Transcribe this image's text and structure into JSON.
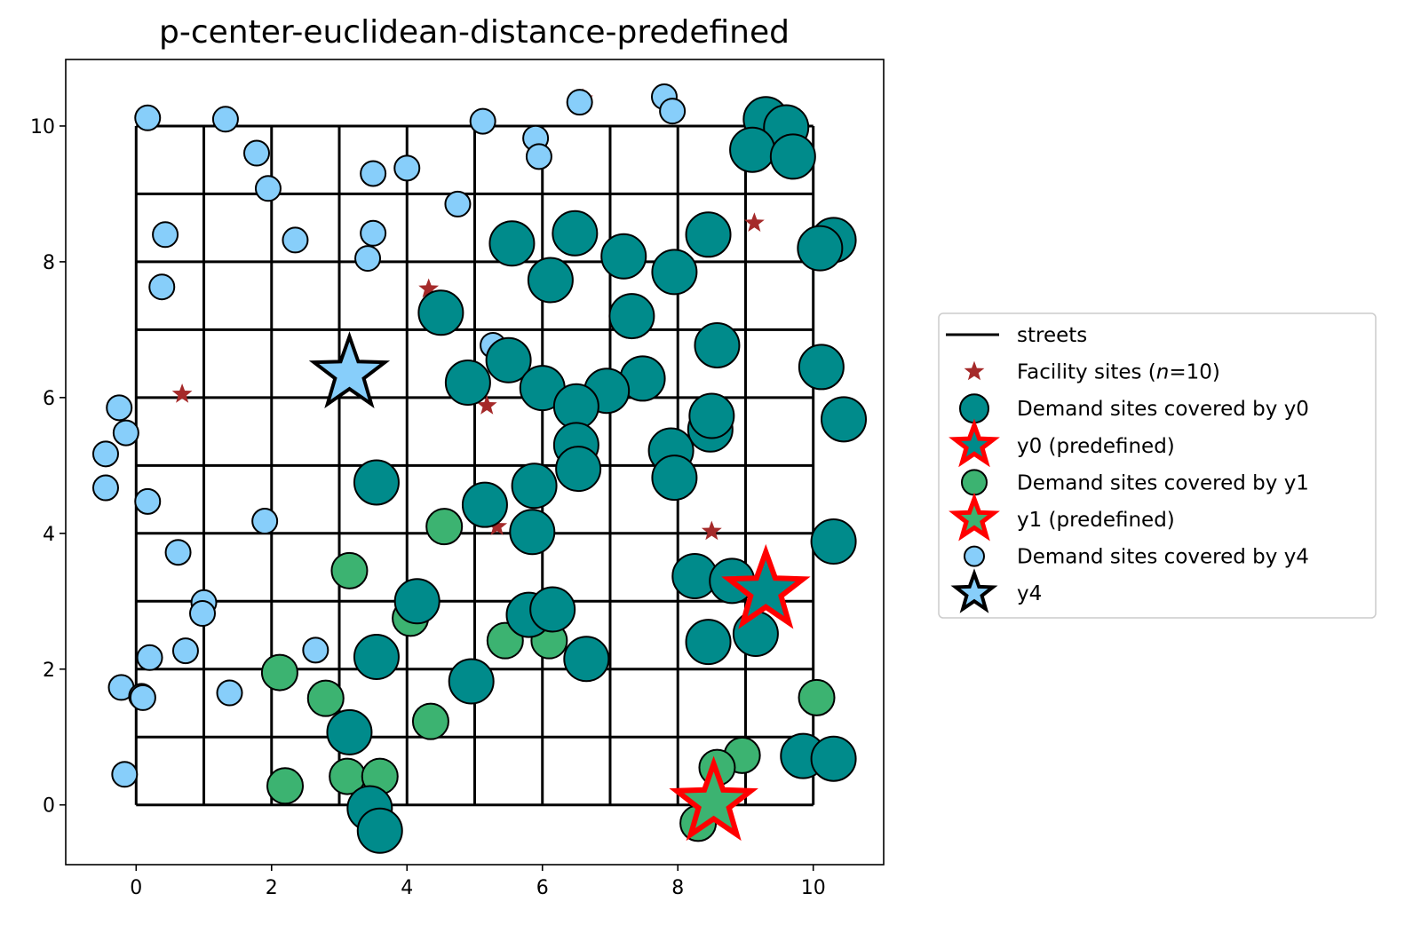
{
  "chart_data": {
    "type": "scatter",
    "title": "p-center-euclidean-distance-predefined",
    "xlabel": "",
    "ylabel": "",
    "xlim": [
      -1.04,
      11.04
    ],
    "ylim": [
      -0.88,
      10.98
    ],
    "xticks": [
      0,
      2,
      4,
      6,
      8,
      10
    ],
    "yticks": [
      0,
      2,
      4,
      6,
      8,
      10
    ],
    "grid": false,
    "legend_position": "right, outside plot",
    "colors": {
      "streets": "#000000",
      "facility": "#a52a2a",
      "y0": "#008b8b",
      "y1": "#3cb371",
      "y4": "#87cefa",
      "predefined_outline": "#ff0000"
    },
    "streets": {
      "xs": [
        0,
        1,
        2,
        3,
        4,
        5,
        6,
        7,
        8,
        9,
        10
      ],
      "ys": [
        0,
        1,
        2,
        3,
        4,
        5,
        6,
        7,
        8,
        9,
        10
      ],
      "extent": [
        0,
        10
      ]
    },
    "legend": [
      {
        "key": "streets",
        "label": "streets",
        "symbol": "line"
      },
      {
        "key": "facility",
        "label_pre": "Facility sites (",
        "label_italic": "n",
        "label_post": "=10)",
        "symbol": "small-star"
      },
      {
        "key": "y0_demand",
        "label": "Demand sites covered by y0",
        "symbol": "circle-y0"
      },
      {
        "key": "y0_site",
        "label": "y0 (predefined)",
        "symbol": "star-y0"
      },
      {
        "key": "y1_demand",
        "label": "Demand sites covered by y1",
        "symbol": "circle-y1"
      },
      {
        "key": "y1_site",
        "label": "y1 (predefined)",
        "symbol": "star-y1"
      },
      {
        "key": "y4_demand",
        "label": "Demand sites covered by y4",
        "symbol": "circle-y4"
      },
      {
        "key": "y4_site",
        "label": "y4",
        "symbol": "star-y4"
      }
    ],
    "facility_sites": [
      [
        6.6,
        10.4
      ],
      [
        9.13,
        8.57
      ],
      [
        4.32,
        7.6
      ],
      [
        0.68,
        6.05
      ],
      [
        5.18,
        5.88
      ],
      [
        5.33,
        4.1
      ],
      [
        8.5,
        4.03
      ],
      [
        9.3,
        3.15
      ],
      [
        8.53,
        0.03
      ],
      [
        3.15,
        6.35
      ]
    ],
    "series": [
      {
        "name": "Demand sites covered by y0",
        "points": [
          [
            9.3,
            10.1
          ],
          [
            9.6,
            9.98
          ],
          [
            9.1,
            9.65
          ],
          [
            9.7,
            9.55
          ],
          [
            10.3,
            8.32
          ],
          [
            10.1,
            8.2
          ],
          [
            6.48,
            8.42
          ],
          [
            8.45,
            8.4
          ],
          [
            5.55,
            8.27
          ],
          [
            7.2,
            8.08
          ],
          [
            7.95,
            7.85
          ],
          [
            6.12,
            7.73
          ],
          [
            4.5,
            7.25
          ],
          [
            7.32,
            7.2
          ],
          [
            8.58,
            6.77
          ],
          [
            10.12,
            6.45
          ],
          [
            5.5,
            6.55
          ],
          [
            4.9,
            6.22
          ],
          [
            7.48,
            6.28
          ],
          [
            6.95,
            6.1
          ],
          [
            6.0,
            6.14
          ],
          [
            6.5,
            5.87
          ],
          [
            8.48,
            5.53
          ],
          [
            8.5,
            5.73
          ],
          [
            10.45,
            5.68
          ],
          [
            7.9,
            5.22
          ],
          [
            6.5,
            5.3
          ],
          [
            6.53,
            4.95
          ],
          [
            7.95,
            4.82
          ],
          [
            3.55,
            4.75
          ],
          [
            5.15,
            4.42
          ],
          [
            5.88,
            4.7
          ],
          [
            5.85,
            4.02
          ],
          [
            10.3,
            3.88
          ],
          [
            8.25,
            3.37
          ],
          [
            8.8,
            3.3
          ],
          [
            4.15,
            3.0
          ],
          [
            5.8,
            2.8
          ],
          [
            6.15,
            2.88
          ],
          [
            8.45,
            2.4
          ],
          [
            9.15,
            2.52
          ],
          [
            3.55,
            2.18
          ],
          [
            6.65,
            2.15
          ],
          [
            4.95,
            1.82
          ],
          [
            3.15,
            1.07
          ],
          [
            9.85,
            0.72
          ],
          [
            10.3,
            0.68
          ],
          [
            3.45,
            -0.05
          ],
          [
            3.6,
            -0.38
          ]
        ]
      },
      {
        "name": "Demand sites covered by y1",
        "points": [
          [
            4.55,
            4.1
          ],
          [
            3.15,
            3.45
          ],
          [
            4.05,
            2.75
          ],
          [
            5.45,
            2.42
          ],
          [
            6.1,
            2.42
          ],
          [
            2.12,
            1.95
          ],
          [
            2.8,
            1.57
          ],
          [
            4.35,
            1.23
          ],
          [
            10.05,
            1.58
          ],
          [
            8.95,
            0.73
          ],
          [
            8.58,
            0.55
          ],
          [
            2.2,
            0.28
          ],
          [
            3.12,
            0.42
          ],
          [
            3.6,
            0.42
          ],
          [
            8.3,
            -0.27
          ]
        ]
      },
      {
        "name": "Demand sites covered by y4",
        "points": [
          [
            6.55,
            10.35
          ],
          [
            7.8,
            10.43
          ],
          [
            7.92,
            10.22
          ],
          [
            0.17,
            10.12
          ],
          [
            1.32,
            10.1
          ],
          [
            5.12,
            10.07
          ],
          [
            5.9,
            9.82
          ],
          [
            5.95,
            9.55
          ],
          [
            1.78,
            9.6
          ],
          [
            4.0,
            9.38
          ],
          [
            3.5,
            9.3
          ],
          [
            1.95,
            9.08
          ],
          [
            4.75,
            8.85
          ],
          [
            0.43,
            8.4
          ],
          [
            2.35,
            8.32
          ],
          [
            3.5,
            8.42
          ],
          [
            3.42,
            8.05
          ],
          [
            0.38,
            7.63
          ],
          [
            5.27,
            6.77
          ],
          [
            -0.25,
            5.85
          ],
          [
            -0.15,
            5.48
          ],
          [
            -0.45,
            5.17
          ],
          [
            -0.45,
            4.67
          ],
          [
            0.17,
            4.47
          ],
          [
            1.9,
            4.18
          ],
          [
            0.62,
            3.72
          ],
          [
            1.0,
            2.98
          ],
          [
            0.98,
            2.82
          ],
          [
            2.65,
            2.28
          ],
          [
            0.73,
            2.27
          ],
          [
            0.2,
            2.17
          ],
          [
            -0.22,
            1.73
          ],
          [
            0.08,
            1.6
          ],
          [
            0.1,
            1.58
          ],
          [
            1.38,
            1.65
          ],
          [
            -0.17,
            0.45
          ]
        ]
      }
    ],
    "predefined_sites": [
      {
        "name": "y0",
        "x": 9.3,
        "y": 3.15,
        "fill": "y0",
        "outline": "predefined_outline"
      },
      {
        "name": "y1",
        "x": 8.53,
        "y": 0.03,
        "fill": "y1",
        "outline": "predefined_outline"
      }
    ],
    "selected_sites": [
      {
        "name": "y4",
        "x": 3.15,
        "y": 6.35,
        "fill": "y4",
        "outline": "streets"
      }
    ]
  }
}
